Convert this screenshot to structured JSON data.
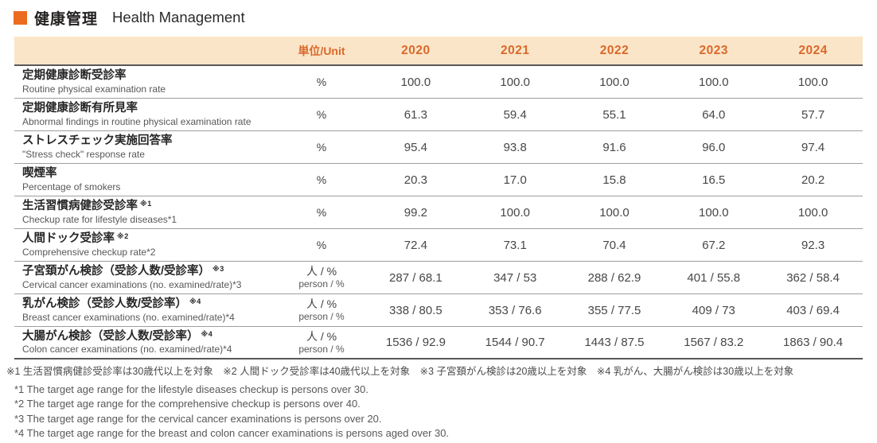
{
  "header": {
    "title_ja": "健康管理",
    "title_en": "Health Management"
  },
  "table": {
    "unit_header": "単位/Unit",
    "years": [
      "2020",
      "2021",
      "2022",
      "2023",
      "2024"
    ],
    "rows": [
      {
        "label_ja": "定期健康診断受診率",
        "label_note": "",
        "label_en": "Routine physical examination rate",
        "unit_line1": "%",
        "unit_line2": "",
        "values": [
          "100.0",
          "100.0",
          "100.0",
          "100.0",
          "100.0"
        ]
      },
      {
        "label_ja": "定期健康診断有所見率",
        "label_note": "",
        "label_en": "Abnormal findings in routine physical examination rate",
        "unit_line1": "%",
        "unit_line2": "",
        "values": [
          "61.3",
          "59.4",
          "55.1",
          "64.0",
          "57.7"
        ]
      },
      {
        "label_ja": "ストレスチェック実施回答率",
        "label_note": "",
        "label_en": "\"Stress check\" response rate",
        "unit_line1": "%",
        "unit_line2": "",
        "values": [
          "95.4",
          "93.8",
          "91.6",
          "96.0",
          "97.4"
        ]
      },
      {
        "label_ja": "喫煙率",
        "label_note": "",
        "label_en": "Percentage of smokers",
        "unit_line1": "%",
        "unit_line2": "",
        "values": [
          "20.3",
          "17.0",
          "15.8",
          "16.5",
          "20.2"
        ]
      },
      {
        "label_ja": "生活習慣病健診受診率",
        "label_note": "※1",
        "label_en": "Checkup rate for lifestyle diseases*1",
        "unit_line1": "%",
        "unit_line2": "",
        "values": [
          "99.2",
          "100.0",
          "100.0",
          "100.0",
          "100.0"
        ]
      },
      {
        "label_ja": "人間ドック受診率",
        "label_note": "※2",
        "label_en": "Comprehensive checkup rate*2",
        "unit_line1": "%",
        "unit_line2": "",
        "values": [
          "72.4",
          "73.1",
          "70.4",
          "67.2",
          "92.3"
        ]
      },
      {
        "label_ja": "子宮頚がん検診（受診人数/受診率）",
        "label_note": "※3",
        "label_en": "Cervical cancer examinations (no. examined/rate)*3",
        "unit_line1": "人 / %",
        "unit_line2": "person / %",
        "values": [
          "287 / 68.1",
          "347 / 53",
          "288 / 62.9",
          "401 / 55.8",
          "362 / 58.4"
        ]
      },
      {
        "label_ja": "乳がん検診（受診人数/受診率）",
        "label_note": "※4",
        "label_en": "Breast cancer examinations (no. examined/rate)*4",
        "unit_line1": "人 / %",
        "unit_line2": "person / %",
        "values": [
          "338 / 80.5",
          "353 / 76.6",
          "355 / 77.5",
          "409 / 73",
          "403 / 69.4"
        ]
      },
      {
        "label_ja": "大腸がん検診（受診人数/受診率）",
        "label_note": "※4",
        "label_en": "Colon cancer examinations (no. examined/rate)*4",
        "unit_line1": "人 / %",
        "unit_line2": "person / %",
        "values": [
          "1536 / 92.9",
          "1544 / 90.7",
          "1443 / 87.5",
          "1567 / 83.2",
          "1863 / 90.4"
        ]
      }
    ]
  },
  "footnotes": {
    "ja": "※1 生活習慣病健診受診率は30歳代以上を対象　※2 人間ドック受診率は40歳代以上を対象　※3 子宮頚がん検診は20歳以上を対象　※4 乳がん、大腸がん検診は30歳以上を対象",
    "en": [
      "*1 The target age range for the lifestyle diseases checkup is persons over 30.",
      "*2 The target age range for the comprehensive checkup is persons over 40.",
      "*3 The target age range for the cervical cancer examinations is persons over 20.",
      "*4 The target age range for the breast and colon cancer examinations is persons aged over 30."
    ]
  },
  "colors": {
    "accent_orange": "#ec6c1f",
    "header_bg": "#fbe5c8",
    "header_text": "#d9692b",
    "rule_dark": "#595757",
    "rule_light": "#9f9f9f"
  }
}
